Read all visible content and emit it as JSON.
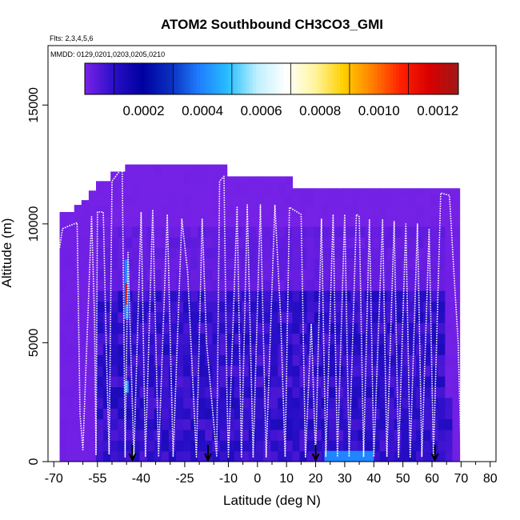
{
  "chart_data": {
    "type": "heatmap",
    "title": "ATOM2 Southbound CH3CO3_GMI",
    "subtitle_flights": "Flts: 2,3,4,5,6",
    "subtitle_dates": "MMDD: 0129,0201,0203,0205,0210",
    "xlabel": "Latitude (deg N)",
    "ylabel": "Altitude (m)",
    "xlim": [
      -72,
      82
    ],
    "ylim": [
      0,
      17500
    ],
    "x_ticks": [
      -70,
      -55,
      -40,
      -25,
      -10,
      0,
      10,
      20,
      30,
      40,
      50,
      60,
      70,
      80
    ],
    "y_ticks": [
      0,
      5000,
      10000,
      15000
    ],
    "colorbar": {
      "range": [
        0,
        0.00127
      ],
      "tick_values": [
        0.0002,
        0.0004,
        0.0006,
        0.0008,
        0.001,
        0.0012
      ],
      "tick_labels": [
        "0.0002",
        "0.0004",
        "0.0006",
        "0.0008",
        "0.0010",
        "0.0012"
      ],
      "colors": [
        "#7a22e8",
        "#2a0fc8",
        "#0000a0",
        "#0a2fc0",
        "#1f7fff",
        "#28c0ff",
        "#bff0ff",
        "#ffffff",
        "#fff5a0",
        "#ffd000",
        "#ff8000",
        "#ff2000",
        "#d80000",
        "#a01818"
      ]
    },
    "column_tops": [
      {
        "x0": -68,
        "x1": -63,
        "top": 10500
      },
      {
        "x0": -63,
        "x1": -60,
        "top": 10800
      },
      {
        "x0": -60,
        "x1": -57,
        "top": 11000
      },
      {
        "x0": -57,
        "x1": -55,
        "top": 11400
      },
      {
        "x0": -55,
        "x1": -50,
        "top": 11800
      },
      {
        "x0": -50,
        "x1": -45,
        "top": 12200
      },
      {
        "x0": -45,
        "x1": -10,
        "top": 12500
      },
      {
        "x0": -10,
        "x1": 13,
        "top": 12000
      },
      {
        "x0": 13,
        "x1": 70,
        "top": 11500
      }
    ],
    "highlights": [
      {
        "lat": -45,
        "alt_min": 6000,
        "alt_max": 8500,
        "value": 0.0012
      },
      {
        "lat": -45,
        "alt_min": 2900,
        "alt_max": 3400,
        "value": 0.00045
      },
      {
        "lat_min": 23,
        "lat_max": 40,
        "alt_min": 0,
        "alt_max": 450,
        "value": 0.0004
      }
    ],
    "flight_track": [
      [
        -68,
        9000
      ],
      [
        -67,
        9800
      ],
      [
        -64,
        9950
      ],
      [
        -62,
        10050
      ],
      [
        -61,
        2000
      ],
      [
        -60,
        500
      ],
      [
        -57,
        10300
      ],
      [
        -56,
        6000
      ],
      [
        -55.5,
        300
      ],
      [
        -55,
        10500
      ],
      [
        -53,
        10500
      ],
      [
        -52,
        5000
      ],
      [
        -51,
        300
      ],
      [
        -50,
        11800
      ],
      [
        -47.5,
        12200
      ],
      [
        -46.5,
        12400
      ],
      [
        -46,
        7000
      ],
      [
        -45.5,
        200
      ],
      [
        -44.5,
        8800
      ],
      [
        -42.5,
        200
      ],
      [
        -40,
        10500
      ],
      [
        -38.5,
        200
      ],
      [
        -36,
        10600
      ],
      [
        -34,
        200
      ],
      [
        -31,
        10400
      ],
      [
        -29,
        200
      ],
      [
        -26,
        10200
      ],
      [
        -24,
        8000
      ],
      [
        -21,
        200
      ],
      [
        -19,
        10200
      ],
      [
        -17.5,
        5000
      ],
      [
        -14,
        200
      ],
      [
        -13,
        11800
      ],
      [
        -11.5,
        12000
      ],
      [
        -10.5,
        3000
      ],
      [
        -10,
        200
      ],
      [
        -7,
        10700
      ],
      [
        -5.5,
        200
      ],
      [
        -3.5,
        10800
      ],
      [
        -1.5,
        200
      ],
      [
        1,
        10800
      ],
      [
        3,
        200
      ],
      [
        6,
        10800
      ],
      [
        8,
        6000
      ],
      [
        9.5,
        200
      ],
      [
        11,
        10700
      ],
      [
        15,
        10400
      ],
      [
        16.5,
        200
      ],
      [
        18.5,
        5800
      ],
      [
        20,
        200
      ],
      [
        22,
        10200
      ],
      [
        23.5,
        200
      ],
      [
        26,
        10400
      ],
      [
        27.5,
        200
      ],
      [
        30,
        10400
      ],
      [
        31.5,
        200
      ],
      [
        34,
        10400
      ],
      [
        35,
        10300
      ],
      [
        36.5,
        200
      ],
      [
        38.5,
        10200
      ],
      [
        40,
        200
      ],
      [
        43,
        10200
      ],
      [
        44.5,
        200
      ],
      [
        47,
        10100
      ],
      [
        48.5,
        200
      ],
      [
        51,
        10000
      ],
      [
        52.5,
        200
      ],
      [
        55,
        10000
      ],
      [
        56.5,
        200
      ],
      [
        59,
        9800
      ],
      [
        60.5,
        200
      ],
      [
        63,
        11300
      ],
      [
        66,
        11200
      ],
      [
        67.5,
        8000
      ],
      [
        69,
        5000
      ],
      [
        70,
        200
      ]
    ],
    "arrow_latitudes": [
      -43,
      -17,
      20,
      61
    ]
  }
}
